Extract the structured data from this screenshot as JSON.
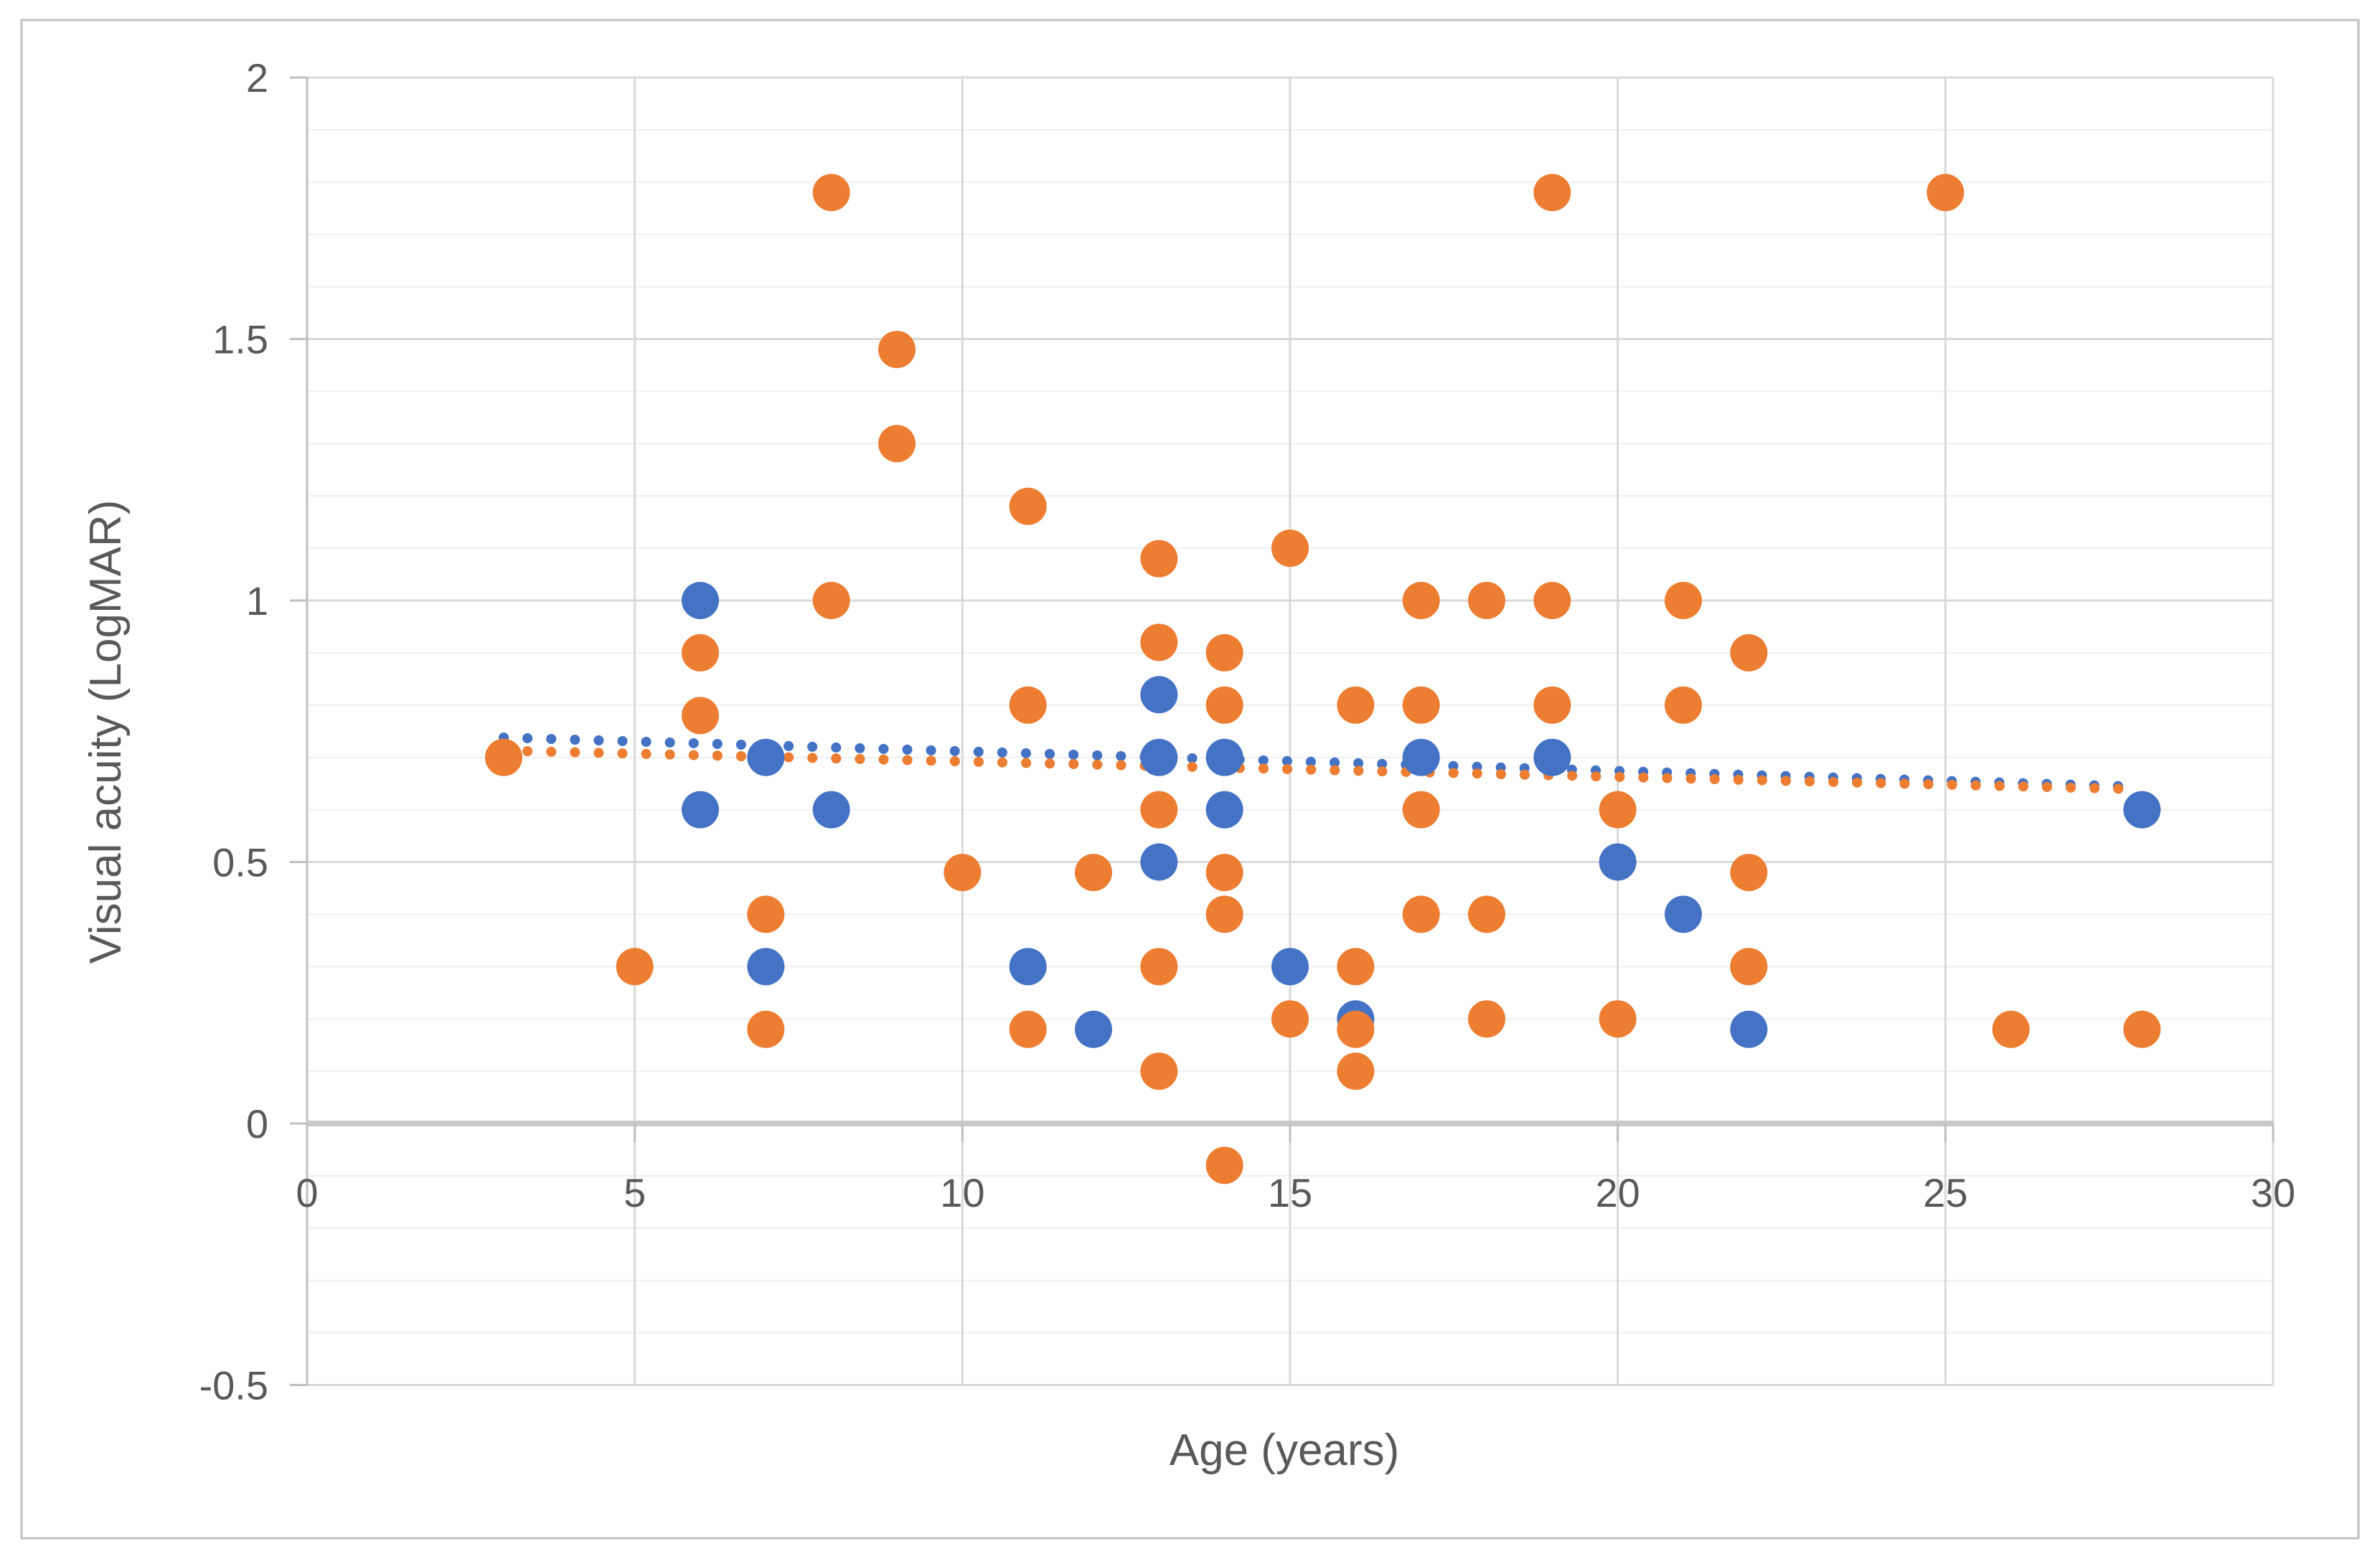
{
  "figure": {
    "background": "#ffffff",
    "border_color": "#bfbfbf"
  },
  "chart_data": {
    "type": "scatter",
    "title": "",
    "xlabel": "Age (years)",
    "ylabel": "Visual acuity (LogMAR)",
    "xlim": [
      0,
      30
    ],
    "ylim": [
      -0.5,
      2
    ],
    "x_tick_values": [
      0,
      5,
      10,
      15,
      20,
      25,
      30
    ],
    "x_tick_labels": [
      "0",
      "5",
      "10",
      "15",
      "20",
      "25",
      "30"
    ],
    "y_tick_values": [
      -0.5,
      0,
      0.5,
      1,
      1.5,
      2
    ],
    "y_tick_labels": [
      "-0.5",
      "0",
      "0.5",
      "1",
      "1.5",
      "2"
    ],
    "y_minor_step": 0.1,
    "grid": {
      "vertical_major": true,
      "horizontal_major": true,
      "horizontal_minor": true
    },
    "legend_position": "none",
    "axis_color": "#bfbfbf",
    "zero_axis_color": "#c9c9c9",
    "gridline_color": "#d9d9d9",
    "minor_gridline_color": "#efefef",
    "tick_label_color": "#595959",
    "axis_title_color": "#595959",
    "series": [
      {
        "name": "blue-series",
        "color": "#4472C4",
        "marker": "circle",
        "points": [
          [
            6,
            1
          ],
          [
            6,
            0.6
          ],
          [
            7,
            0.7
          ],
          [
            7,
            0.3
          ],
          [
            8,
            0.6
          ],
          [
            11,
            0.3
          ],
          [
            12,
            0.18
          ],
          [
            13,
            0.82
          ],
          [
            13,
            0.7
          ],
          [
            13,
            0.5
          ],
          [
            14,
            0.7
          ],
          [
            14,
            0.6
          ],
          [
            15,
            0.3
          ],
          [
            16,
            0.2
          ],
          [
            17,
            0.7
          ],
          [
            19,
            0.7
          ],
          [
            20,
            0.5
          ],
          [
            21,
            0.4
          ],
          [
            22,
            0.18
          ],
          [
            28,
            0.6
          ]
        ]
      },
      {
        "name": "orange-series",
        "color": "#ED7D31",
        "marker": "circle",
        "points": [
          [
            3,
            0.7
          ],
          [
            5,
            0.3
          ],
          [
            6,
            0.9
          ],
          [
            6,
            0.78
          ],
          [
            7,
            0.4
          ],
          [
            7,
            0.18
          ],
          [
            8,
            1.78
          ],
          [
            8,
            1
          ],
          [
            9,
            1.48
          ],
          [
            9,
            1.3
          ],
          [
            10,
            0.48
          ],
          [
            11,
            1.18
          ],
          [
            11,
            0.8
          ],
          [
            11,
            0.18
          ],
          [
            12,
            0.48
          ],
          [
            13,
            1.08
          ],
          [
            13,
            0.92
          ],
          [
            13,
            0.6
          ],
          [
            13,
            0.3
          ],
          [
            13,
            0.1
          ],
          [
            14,
            0.9
          ],
          [
            14,
            0.8
          ],
          [
            14,
            0.48
          ],
          [
            14,
            0.4
          ],
          [
            14,
            -0.08
          ],
          [
            15,
            1.1
          ],
          [
            15,
            0.2
          ],
          [
            16,
            0.8
          ],
          [
            16,
            0.3
          ],
          [
            16,
            0.18
          ],
          [
            16,
            0.1
          ],
          [
            17,
            1
          ],
          [
            17,
            0.8
          ],
          [
            17,
            0.6
          ],
          [
            17,
            0.4
          ],
          [
            18,
            1
          ],
          [
            18,
            0.4
          ],
          [
            18,
            0.2
          ],
          [
            19,
            1.78
          ],
          [
            19,
            1
          ],
          [
            19,
            0.8
          ],
          [
            20,
            0.6
          ],
          [
            20,
            0.2
          ],
          [
            21,
            1
          ],
          [
            21,
            0.8
          ],
          [
            22,
            0.9
          ],
          [
            22,
            0.48
          ],
          [
            22,
            0.3
          ],
          [
            25,
            1.78
          ],
          [
            26,
            0.18
          ],
          [
            28,
            0.18
          ]
        ]
      }
    ],
    "trendlines": [
      {
        "name": "blue-trendline",
        "series": "blue-series",
        "color": "#4472C4",
        "style": "dotted",
        "from": [
          3.0,
          0.738
        ],
        "to": [
          27.7,
          0.645
        ]
      },
      {
        "name": "orange-trendline",
        "series": "orange-series",
        "color": "#ED7D31",
        "style": "dotted",
        "from": [
          3.0,
          0.713
        ],
        "to": [
          27.7,
          0.64
        ]
      }
    ]
  }
}
